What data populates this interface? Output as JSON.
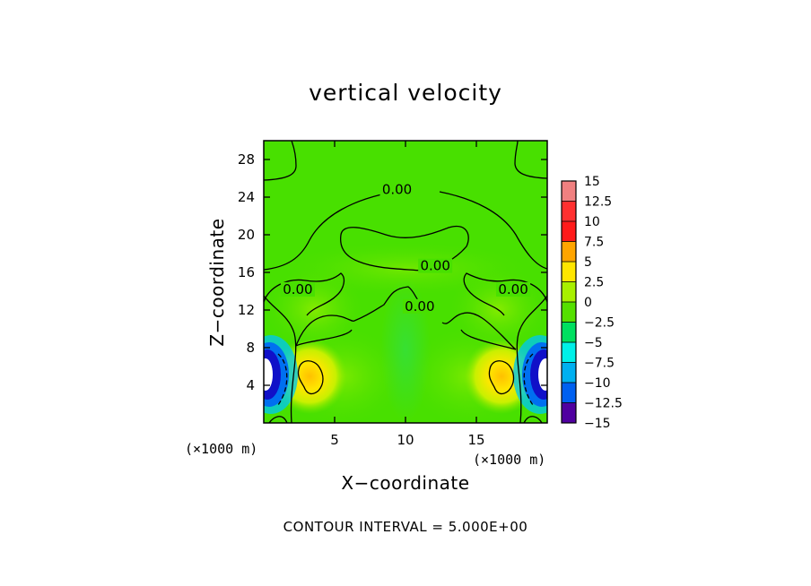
{
  "chart_data": {
    "type": "heatmap",
    "title": "vertical velocity",
    "xlabel": "X−coordinate",
    "ylabel": "Z−coordinate",
    "x_unit_label_left": "(×1000 m)",
    "x_unit_label_right": "(×1000 m)",
    "xlim": [
      0,
      20
    ],
    "ylim": [
      0,
      30
    ],
    "x_ticks": [
      5,
      10,
      15
    ],
    "y_ticks": [
      4,
      8,
      12,
      16,
      20,
      24,
      28
    ],
    "x_tick_labels": [
      "5",
      "10",
      "15"
    ],
    "y_tick_labels": [
      "4",
      "8",
      "12",
      "16",
      "20",
      "24",
      "28"
    ],
    "footer": "CONTOUR INTERVAL = 5.000E+00",
    "colorbar": {
      "levels": [
        15,
        12.5,
        10,
        7.5,
        5,
        2.5,
        0,
        -2.5,
        -5,
        -7.5,
        -10,
        -12.5,
        -15
      ],
      "labels": [
        "15",
        "12.5",
        "10",
        "7.5",
        "5",
        "2.5",
        "0",
        "−2.5",
        "−5",
        "−7.5",
        "−10",
        "−12.5",
        "−15"
      ],
      "colors": [
        "#f08080",
        "#ff3030",
        "#ff1a1a",
        "#ffa500",
        "#ffe600",
        "#a8f000",
        "#55e000",
        "#00e060",
        "#00f0e8",
        "#00b0f0",
        "#0060f0",
        "#1010d0",
        "#5000a0"
      ]
    },
    "contour_labels": [
      {
        "text": "0.00",
        "x": 9.4,
        "z": 24.8
      },
      {
        "text": "0.00",
        "x": 12.1,
        "z": 16.7
      },
      {
        "text": "0.00",
        "x": 2.4,
        "z": 14.2
      },
      {
        "text": "0.00",
        "x": 11.0,
        "z": 12.4
      },
      {
        "text": "0.00",
        "x": 17.6,
        "z": 14.2
      }
    ],
    "features": [
      {
        "name": "updraft-left",
        "x": 3.2,
        "z": 5.0,
        "value": 7.5
      },
      {
        "name": "updraft-right",
        "x": 16.8,
        "z": 5.0,
        "value": 7.5
      },
      {
        "name": "downdraft-left",
        "x": 0.4,
        "z": 4.5,
        "value": -15
      },
      {
        "name": "downdraft-right",
        "x": 19.6,
        "z": 4.5,
        "value": -15
      }
    ]
  }
}
